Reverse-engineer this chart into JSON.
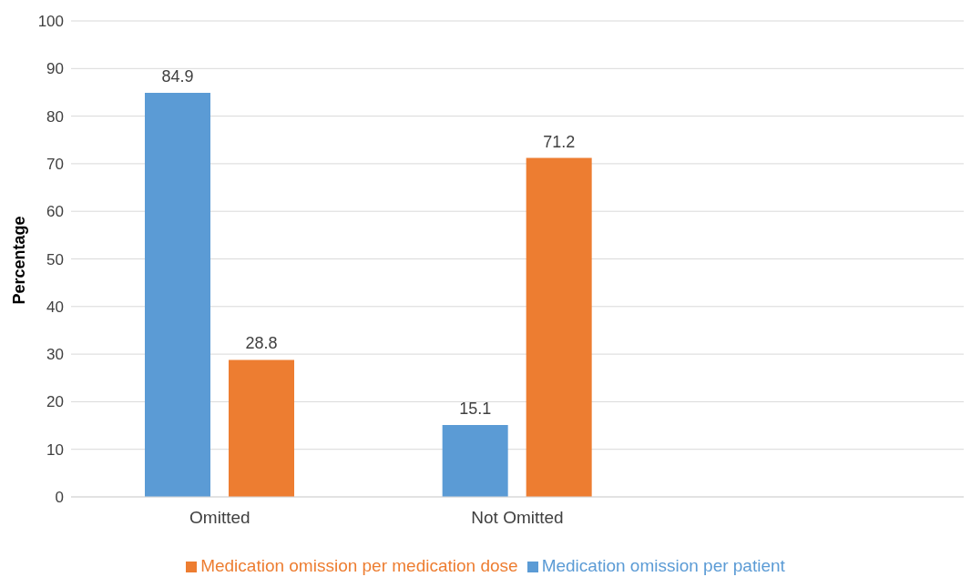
{
  "chart_data": {
    "type": "bar",
    "ylabel": "Percentage",
    "categories": [
      "Omitted",
      "Not Omitted",
      null
    ],
    "series": [
      {
        "name": "Medication omission per patient",
        "color": "#5b9bd5",
        "values": [
          84.9,
          15.1,
          null
        ]
      },
      {
        "name": "Medication omission per medication dose",
        "color": "#ed7d31",
        "values": [
          28.8,
          71.2,
          null
        ]
      }
    ],
    "ylim": [
      0,
      100
    ],
    "yticks": [
      0,
      10,
      20,
      30,
      40,
      50,
      60,
      70,
      80,
      90,
      100
    ],
    "grid": "y",
    "legend": "bottom",
    "data_labels": true
  }
}
